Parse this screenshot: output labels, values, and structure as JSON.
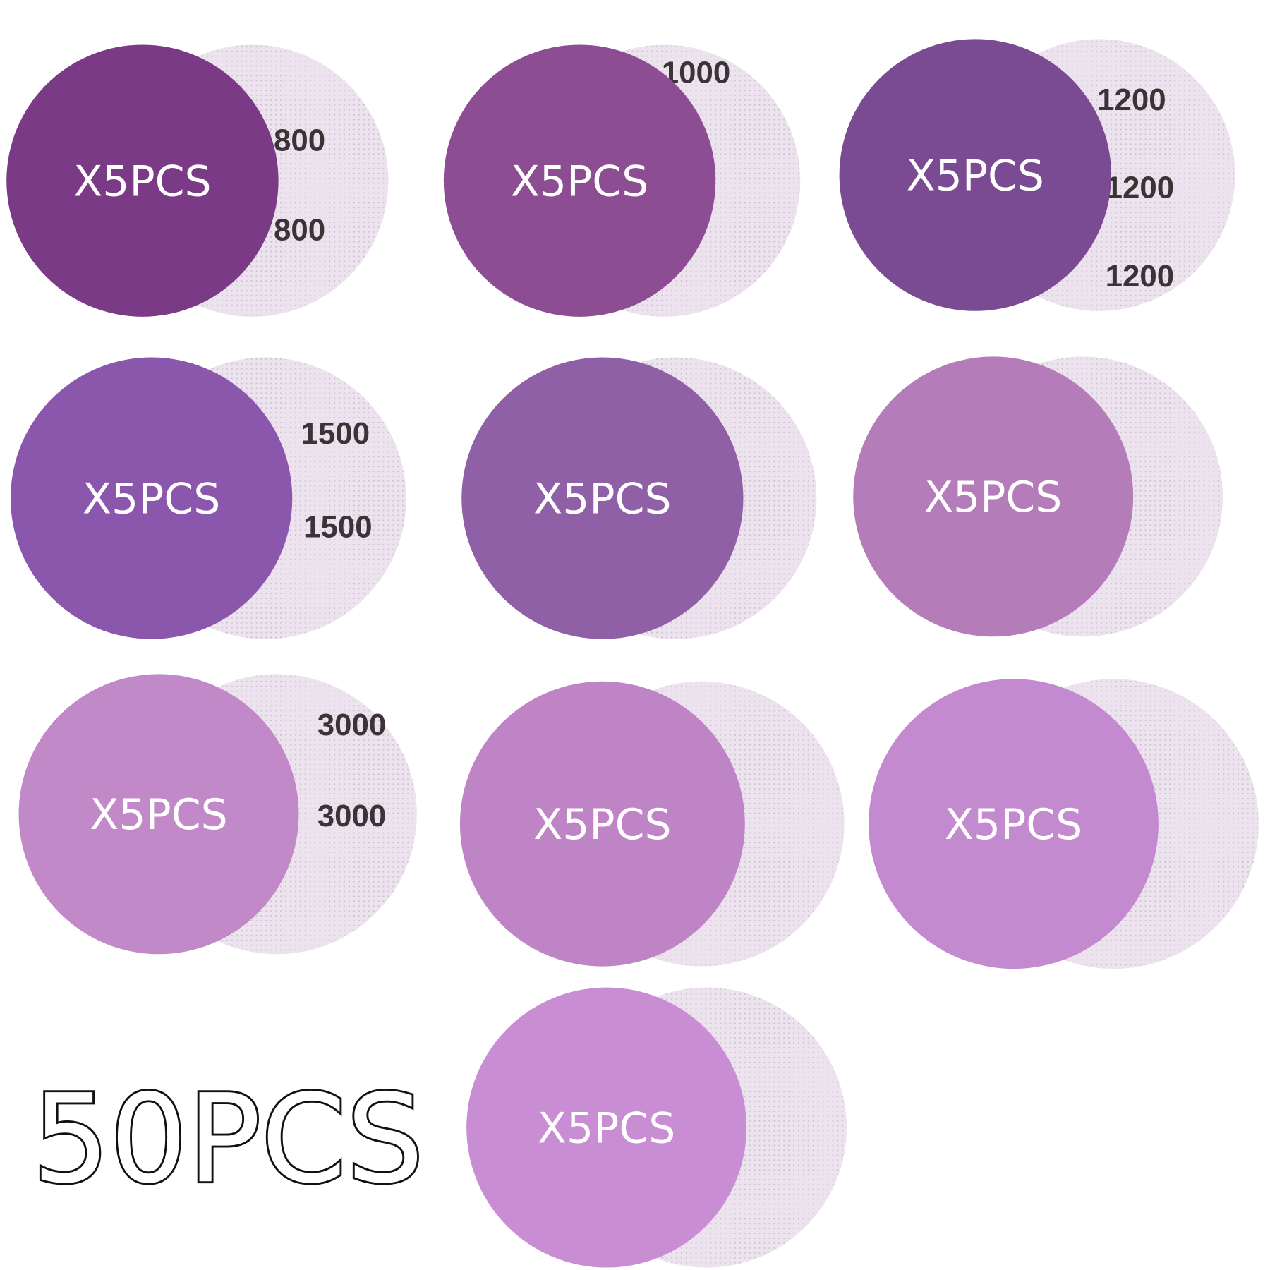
{
  "discs": [
    {
      "label": "X5PCS",
      "grit": [
        "800",
        "800"
      ]
    },
    {
      "label": "X5PCS",
      "grit": [
        "1000"
      ]
    },
    {
      "label": "X5PCS",
      "grit": [
        "1200",
        "1200",
        "1200"
      ]
    },
    {
      "label": "X5PCS",
      "grit": [
        "1500",
        "1500"
      ]
    },
    {
      "label": "X5PCS"
    },
    {
      "label": "X5PCS"
    },
    {
      "label": "X5PCS",
      "grit": [
        "3000",
        "3000"
      ]
    },
    {
      "label": "X5PCS"
    },
    {
      "label": "X5PCS"
    },
    {
      "label": "X5PCS"
    }
  ],
  "total": "50PCS"
}
